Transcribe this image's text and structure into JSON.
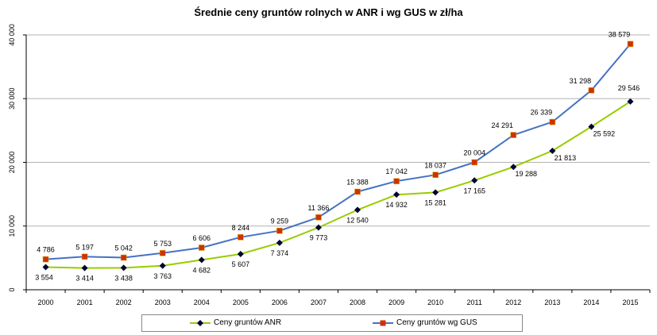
{
  "chart_data": {
    "type": "line",
    "title": "Średnie ceny gruntów rolnych w ANR i wg GUS w zł/ha",
    "xlabel": "",
    "ylabel": "",
    "categories": [
      "2000",
      "2001",
      "2002",
      "2003",
      "2004",
      "2005",
      "2006",
      "2007",
      "2008",
      "2009",
      "2010",
      "2011",
      "2012",
      "2013",
      "2014",
      "2015"
    ],
    "ylim": [
      0,
      40000
    ],
    "yticks": [
      0,
      10000,
      20000,
      30000,
      40000
    ],
    "ytick_labels": [
      "0",
      "10 000",
      "20 000",
      "30 000",
      "40 000"
    ],
    "grid": true,
    "legend_position": "bottom",
    "series": [
      {
        "name": "Ceny gruntów ANR",
        "color": "#99cc00",
        "marker": "diamond",
        "marker_color": "#000033",
        "values": [
          3554,
          3414,
          3438,
          3763,
          4682,
          5607,
          7374,
          9773,
          12540,
          14932,
          15281,
          17165,
          19288,
          21813,
          25592,
          29546
        ],
        "labels": [
          "3 554",
          "3 414",
          "3 438",
          "3 763",
          "4 682",
          "5 607",
          "7 374",
          "9 773",
          "12 540",
          "14 932",
          "15 281",
          "17 165",
          "19 288",
          "21 813",
          "25 592",
          "29 546"
        ]
      },
      {
        "name": "Ceny gruntów wg GUS",
        "color": "#4472c4",
        "marker": "square",
        "marker_color": "#cc3300",
        "values": [
          4786,
          5197,
          5042,
          5753,
          6606,
          8244,
          9259,
          11366,
          15388,
          17042,
          18037,
          20004,
          24291,
          26339,
          31298,
          38579
        ],
        "labels": [
          "4 786",
          "5 197",
          "5 042",
          "5 753",
          "6 606",
          "8 244",
          "9 259",
          "11 366",
          "15 388",
          "17 042",
          "18 037",
          "20 004",
          "24 291",
          "26 339",
          "31 298",
          "38 579"
        ]
      }
    ]
  }
}
